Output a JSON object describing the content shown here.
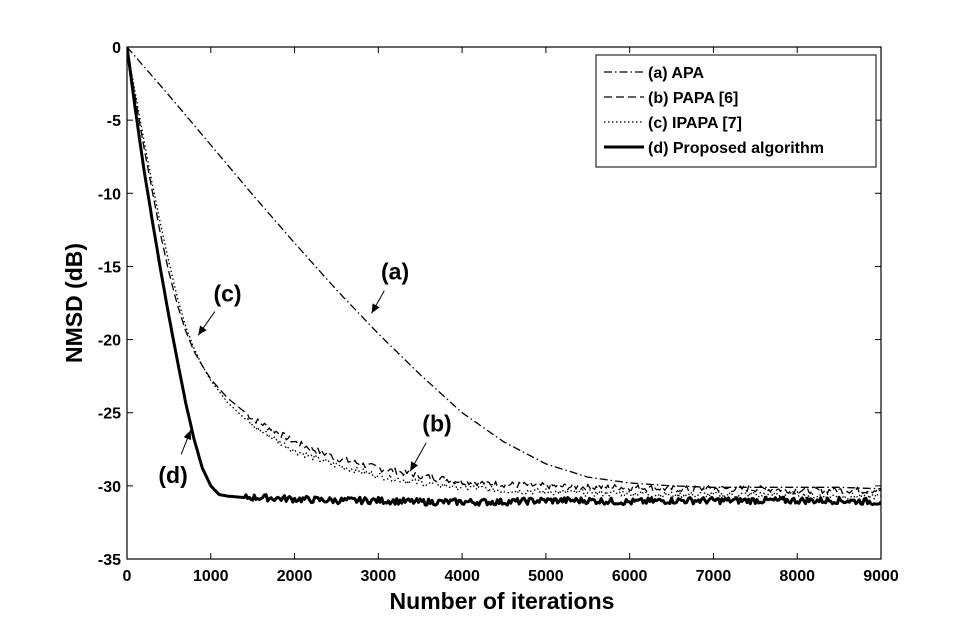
{
  "chart_data": {
    "type": "line",
    "title": "",
    "xlabel": "Number of iterations",
    "ylabel": "NMSD (dB)",
    "xlim": [
      0,
      9000
    ],
    "ylim": [
      -35,
      0
    ],
    "xticks": [
      "0",
      "1000",
      "2000",
      "3000",
      "4000",
      "5000",
      "6000",
      "7000",
      "8000",
      "9000"
    ],
    "yticks": [
      "0",
      "-5",
      "-10",
      "-15",
      "-20",
      "-25",
      "-30",
      "-35"
    ],
    "grid": false,
    "legend_position": "top-right",
    "series": [
      {
        "name": "(a) APA",
        "style": "dashdot",
        "width": 1.3,
        "x": [
          0,
          500,
          1000,
          1500,
          2000,
          2500,
          3000,
          3500,
          4000,
          4500,
          5000,
          5500,
          6000,
          6500,
          7000,
          7500,
          8000,
          8500,
          9000
        ],
        "y": [
          0,
          -3.3,
          -6.7,
          -10.1,
          -13.4,
          -16.6,
          -19.6,
          -22.4,
          -25.0,
          -27.0,
          -28.5,
          -29.4,
          -29.8,
          -30.0,
          -30.1,
          -30.1,
          -30.1,
          -30.1,
          -30.2
        ]
      },
      {
        "name": "(b) PAPA [6]",
        "style": "dashed",
        "width": 1.3,
        "x": [
          0,
          100,
          200,
          300,
          400,
          500,
          600,
          700,
          800,
          900,
          1000,
          1200,
          1500,
          2000,
          2500,
          3000,
          3500,
          4000,
          4500,
          5000,
          5500,
          6000,
          6500,
          7000,
          7500,
          8000,
          8500,
          9000
        ],
        "y": [
          0,
          -3.5,
          -6.8,
          -9.8,
          -12.8,
          -15.4,
          -17.6,
          -19.4,
          -20.8,
          -21.8,
          -22.7,
          -24.0,
          -25.4,
          -27.0,
          -28.1,
          -28.8,
          -29.3,
          -29.7,
          -29.9,
          -30.0,
          -30.1,
          -30.1,
          -30.2,
          -30.2,
          -30.2,
          -30.3,
          -30.3,
          -30.3
        ]
      },
      {
        "name": "(c) IPAPA [7]",
        "style": "dotted",
        "width": 1.3,
        "x": [
          0,
          100,
          200,
          300,
          400,
          500,
          600,
          700,
          800,
          900,
          1000,
          1200,
          1500,
          2000,
          2500,
          3000,
          3500,
          4000,
          4500,
          5000,
          5500,
          6000,
          6500,
          7000,
          7500,
          8000,
          8500,
          9000
        ],
        "y": [
          0,
          -3.2,
          -6.3,
          -9.3,
          -12.1,
          -14.7,
          -17.1,
          -19.1,
          -20.6,
          -21.8,
          -22.8,
          -24.3,
          -25.9,
          -27.6,
          -28.6,
          -29.3,
          -29.8,
          -30.1,
          -30.3,
          -30.4,
          -30.5,
          -30.5,
          -30.6,
          -30.6,
          -30.6,
          -30.6,
          -30.7,
          -30.7
        ]
      },
      {
        "name": "(d) Proposed algorithm",
        "style": "solid",
        "width": 3,
        "x": [
          0,
          100,
          200,
          300,
          400,
          500,
          600,
          700,
          800,
          900,
          1000,
          1100,
          1200,
          1400,
          1600,
          2000,
          2500,
          3000,
          3500,
          4000,
          4500,
          5000,
          5500,
          6000,
          6500,
          7000,
          7500,
          8000,
          8500,
          9000
        ],
        "y": [
          0,
          -4.3,
          -8.3,
          -11.8,
          -15.2,
          -18.4,
          -21.4,
          -24.3,
          -26.8,
          -28.8,
          -30.0,
          -30.6,
          -30.7,
          -30.8,
          -30.8,
          -30.9,
          -31.0,
          -31.0,
          -31.1,
          -31.1,
          -31.1,
          -31.0,
          -31.0,
          -31.1,
          -31.0,
          -31.0,
          -31.0,
          -31.0,
          -31.0,
          -31.1
        ]
      }
    ],
    "annotations": [
      {
        "text": "(a)",
        "text_x": 3200,
        "text_y": -15.9,
        "arrow_x": 2920,
        "arrow_y": -18.2
      },
      {
        "text": "(b)",
        "text_x": 3700,
        "text_y": -26.3,
        "arrow_x": 3380,
        "arrow_y": -29.0
      },
      {
        "text": "(c)",
        "text_x": 1200,
        "text_y": -17.4,
        "arrow_x": 850,
        "arrow_y": -19.7
      },
      {
        "text": "(d)",
        "text_x": 550,
        "text_y": -29.8,
        "arrow_x": 760,
        "arrow_y": -26.2
      }
    ]
  }
}
